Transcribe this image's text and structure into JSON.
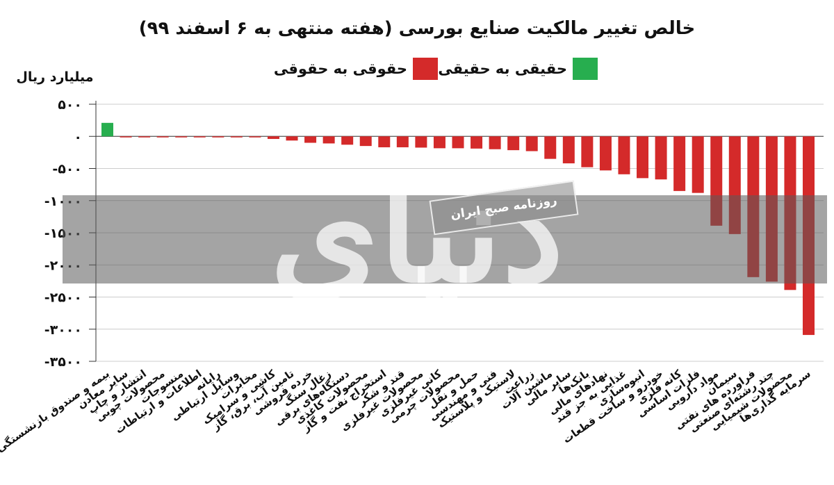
{
  "title": "خالص تغییر مالکیت صنایع بورسی (هفته منتهی به ۶ اسفند ۹۹)",
  "unit_label": "میلیارد ریال",
  "legend": [
    {
      "label": "حقیقی به حقیقی",
      "color": "#27ae4f"
    },
    {
      "label": "حقوقی به حقوقی",
      "color": "#d42a2a"
    }
  ],
  "watermark": {
    "logo_text": "دنیای اقتصاد",
    "tag_text": "روزنامه صبح ایران"
  },
  "chart_data": {
    "type": "bar",
    "ylim": [
      -3500,
      500
    ],
    "yticks": [
      500,
      0,
      -500,
      -1000,
      -1500,
      -2000,
      -2500,
      -3000,
      -3500
    ],
    "ytick_labels": [
      "۵۰۰",
      "۰",
      "-۵۰۰",
      "-۱۰۰۰",
      "-۱۵۰۰",
      "-۲۰۰۰",
      "-۲۵۰۰",
      "-۳۰۰۰",
      "-۳۵۰۰"
    ],
    "grid": true,
    "categories": [
      "بیمه و صندوق بازنشستگی",
      "سایر معادن",
      "انتشار و چاپ",
      "محصولات چوبی",
      "منسوجات",
      "اطلاعات و ارتباطات",
      "رایانه",
      "وسایل ارتباطی",
      "مخابرات",
      "کاشی و سرامیک",
      "تامین آب، برق، گاز",
      "خرده فروشی",
      "زغال سنگ",
      "دستگاه‌های برقی",
      "محصولات کاغذی",
      "استخراج نفت و گاز",
      "قند و شکر",
      "محصولات غیرفلزی",
      "کانی غیرفلزی",
      "محصولات چرمی",
      "حمل و نقل",
      "فنی و مهندسی",
      "لاستیک و پلاستیک",
      "زراعت",
      "ماشین آلات",
      "سایر مالی",
      "بانک‌ها",
      "نهادهای مالی",
      "غذایی به جز قند",
      "انبوه‌سازی",
      "خودرو و ساخت قطعات",
      "کانه فلزی",
      "فلزات اساسی",
      "مواد دارویی",
      "سیمان",
      "فراورده های نفتی",
      "چند رشته‌ای صنعتی",
      "محصولات شیمیایی",
      "سرمایه گذاری‌ها"
    ],
    "values": [
      210,
      -2,
      -3,
      -3,
      -4,
      -5,
      -6,
      -8,
      -15,
      -40,
      -65,
      -100,
      -110,
      -130,
      -150,
      -170,
      -170,
      -175,
      -185,
      -185,
      -190,
      -200,
      -215,
      -230,
      -350,
      -420,
      -480,
      -530,
      -590,
      -650,
      -670,
      -850,
      -880,
      -1390,
      -1520,
      -2190,
      -2260,
      -2390,
      -3090
    ],
    "colors": [
      "#27ae4f",
      "#d42a2a",
      "#d42a2a",
      "#d42a2a",
      "#d42a2a",
      "#d42a2a",
      "#d42a2a",
      "#d42a2a",
      "#d42a2a",
      "#d42a2a",
      "#d42a2a",
      "#d42a2a",
      "#d42a2a",
      "#d42a2a",
      "#d42a2a",
      "#d42a2a",
      "#d42a2a",
      "#d42a2a",
      "#d42a2a",
      "#d42a2a",
      "#d42a2a",
      "#d42a2a",
      "#d42a2a",
      "#d42a2a",
      "#d42a2a",
      "#d42a2a",
      "#d42a2a",
      "#d42a2a",
      "#d42a2a",
      "#d42a2a",
      "#d42a2a",
      "#d42a2a",
      "#d42a2a",
      "#d42a2a",
      "#d42a2a",
      "#d42a2a",
      "#d42a2a",
      "#d42a2a",
      "#d42a2a"
    ]
  }
}
